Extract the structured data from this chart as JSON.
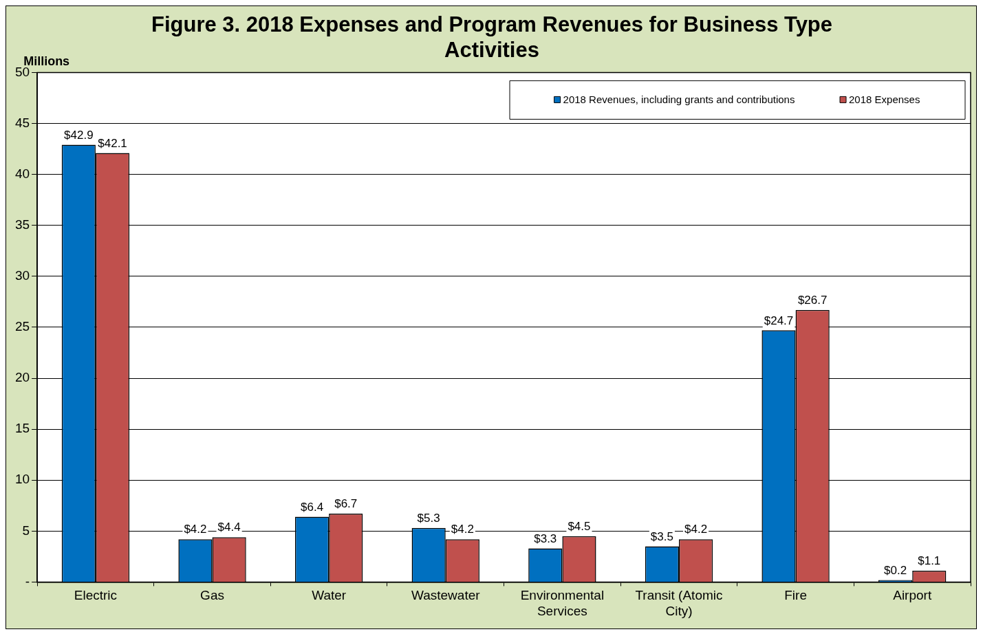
{
  "chart_data": {
    "type": "bar",
    "title": "Figure 3. 2018 Expenses and Program Revenues for Business Type Activities",
    "ylabel": "Millions",
    "categories": [
      "Electric",
      "Gas",
      "Water",
      "Wastewater",
      "Environmental Services",
      "Transit (Atomic City)",
      "Fire",
      "Airport"
    ],
    "series": [
      {
        "name": "2018 Revenues, including grants and contributions",
        "color": "#0070c0",
        "values": [
          42.9,
          4.2,
          6.4,
          5.3,
          3.3,
          3.5,
          24.7,
          0.2
        ],
        "value_labels": [
          "$42.9",
          "$4.2",
          "$6.4",
          "$5.3",
          "$3.3",
          "$3.5",
          "$24.7",
          "$0.2"
        ]
      },
      {
        "name": "2018 Expenses",
        "color": "#c0504d",
        "values": [
          42.1,
          4.4,
          6.7,
          4.2,
          4.5,
          4.2,
          26.7,
          1.1
        ],
        "value_labels": [
          "$42.1",
          "$4.4",
          "$6.7",
          "$4.2",
          "$4.5",
          "$4.2",
          "$26.7",
          "$1.1"
        ]
      }
    ],
    "ylim": [
      0,
      50
    ],
    "yticks": [
      {
        "value": 0,
        "label": "-"
      },
      5,
      10,
      15,
      20,
      25,
      30,
      35,
      40,
      45,
      50
    ],
    "grid": "y",
    "legend": "top right"
  }
}
